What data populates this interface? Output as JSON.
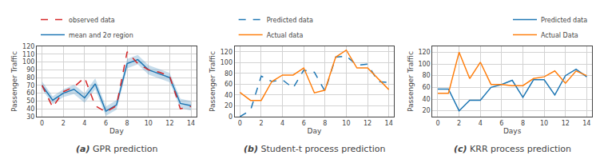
{
  "chart_data": [
    {
      "type": "line",
      "title": "(a) GPR prediction",
      "xlabel": "Day",
      "ylabel": "Passenger Traffic",
      "x": [
        0,
        1,
        2,
        3,
        4,
        5,
        6,
        7,
        8,
        9,
        10,
        11,
        12,
        13,
        14
      ],
      "band": {
        "lower": [
          65,
          46,
          55,
          59,
          48,
          65,
          31,
          39,
          92,
          97,
          84,
          79,
          74,
          41,
          38
        ],
        "upper": [
          75,
          56,
          65,
          71,
          60,
          79,
          43,
          51,
          104,
          109,
          96,
          91,
          86,
          53,
          50
        ],
        "color": "#1f77b4"
      },
      "series": [
        {
          "name": "mean and 2σ region",
          "color": "#1f77b4",
          "line_style": "solid",
          "values": [
            70,
            51,
            60,
            65,
            54,
            72,
            37,
            45,
            98,
            103,
            90,
            85,
            80,
            47,
            44
          ]
        },
        {
          "name": "observed data",
          "color": "#d62728",
          "line_style": "dashed",
          "values": [
            70,
            42,
            62,
            68,
            80,
            44,
            36,
            44,
            113,
            98,
            90,
            87,
            82,
            40,
            43
          ]
        }
      ],
      "xlim": [
        -0.5,
        14.5
      ],
      "xticks": [
        0,
        2,
        4,
        6,
        8,
        10,
        12,
        14
      ],
      "ylim": [
        30,
        120
      ],
      "yticks": [
        30,
        40,
        50,
        60,
        70,
        80,
        90,
        100,
        110,
        120
      ],
      "grid": true,
      "legend": "upper left"
    },
    {
      "type": "line",
      "title": "(b) Student-t process prediction",
      "xlabel": "Day",
      "ylabel": "Passenger Traffic",
      "x": [
        0,
        1,
        2,
        3,
        4,
        5,
        6,
        7,
        8,
        9,
        10,
        11,
        12,
        13,
        14
      ],
      "series": [
        {
          "name": "Predicted data",
          "color": "#1f77b4",
          "line_style": "dashed",
          "values": [
            0,
            12,
            75,
            65,
            68,
            53,
            86,
            82,
            47,
            110,
            112,
            95,
            97,
            65,
            63
          ]
        },
        {
          "name": "Actual data",
          "color": "#ff7f0e",
          "line_style": "solid",
          "values": [
            45,
            30,
            30,
            65,
            77,
            77,
            90,
            44,
            49,
            110,
            123,
            90,
            90,
            70,
            50
          ]
        }
      ],
      "xlim": [
        -0.5,
        14.5
      ],
      "xticks": [
        0,
        2,
        4,
        6,
        8,
        10,
        12,
        14
      ],
      "ylim": [
        0,
        130
      ],
      "yticks": [
        0,
        20,
        40,
        60,
        80,
        100,
        120
      ],
      "grid": true,
      "legend": "upper left"
    },
    {
      "type": "line",
      "title": "(c) KRR process prediction",
      "xlabel": "Days",
      "ylabel": "Passenger Traffic",
      "x": [
        0,
        1,
        2,
        3,
        4,
        5,
        6,
        7,
        8,
        9,
        10,
        11,
        12,
        13,
        14
      ],
      "series": [
        {
          "name": "Predicted data",
          "color": "#1f77b4",
          "line_style": "solid",
          "values": [
            57,
            57,
            20,
            38,
            38,
            60,
            65,
            72,
            43,
            73,
            73,
            47,
            80,
            91,
            78
          ]
        },
        {
          "name": "Actual Data",
          "color": "#ff7f0e",
          "line_style": "solid",
          "values": [
            50,
            50,
            120,
            75,
            103,
            65,
            65,
            63,
            63,
            75,
            78,
            88,
            67,
            88,
            80
          ]
        }
      ],
      "xlim": [
        -0.5,
        14.5
      ],
      "xticks": [
        0,
        2,
        4,
        6,
        8,
        10,
        12,
        14
      ],
      "ylim": [
        10,
        130
      ],
      "yticks": [
        20,
        40,
        60,
        80,
        100,
        120
      ],
      "grid": true,
      "legend": "upper right"
    }
  ]
}
